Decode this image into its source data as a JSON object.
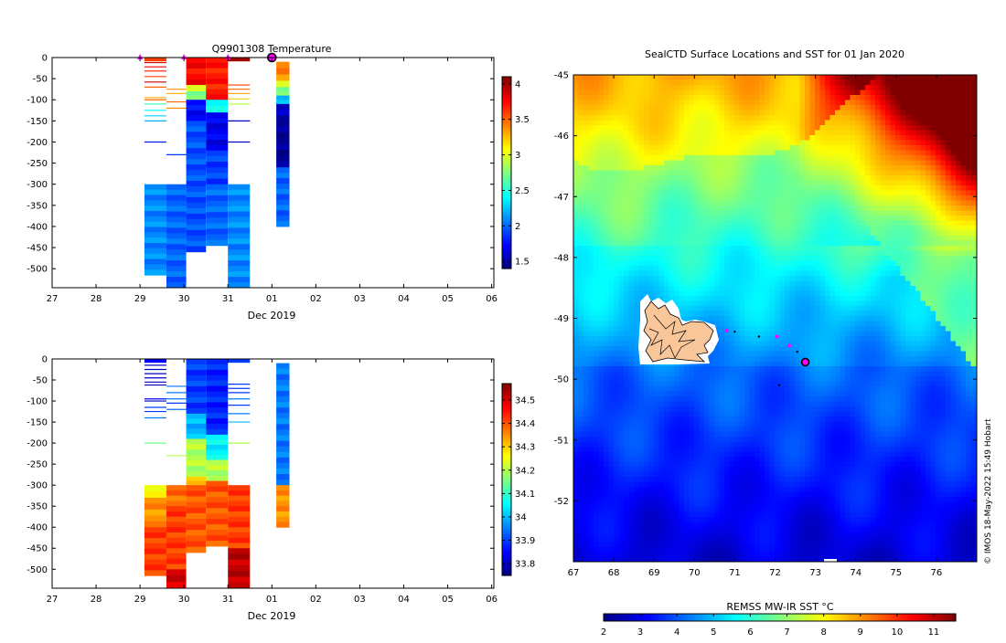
{
  "chart_data": [
    {
      "type": "heatmap",
      "title": "Q9901308  Temperature",
      "xlabel": "Dec 2019",
      "ylabel": "",
      "x_tick_labels": [
        "27",
        "28",
        "29",
        "30",
        "31",
        "01",
        "02",
        "03",
        "04",
        "05",
        "06"
      ],
      "x_tick_values": [
        27,
        28,
        29,
        30,
        31,
        32,
        33,
        34,
        35,
        36,
        37
      ],
      "xlim": [
        27,
        37.05
      ],
      "y_tick_labels": [
        "0",
        "-50",
        "-100",
        "-150",
        "-200",
        "-250",
        "-300",
        "-350",
        "-400",
        "-450",
        "-500"
      ],
      "y_tick_values": [
        0,
        -50,
        -100,
        -150,
        -200,
        -250,
        -300,
        -350,
        -400,
        -450,
        -500
      ],
      "ylim": [
        -545,
        0
      ],
      "colorbar": {
        "ticks": [
          1.5,
          2,
          2.5,
          3,
          3.5,
          4
        ],
        "range": [
          1.4,
          4.1
        ],
        "colormap": "jet"
      },
      "profile_markers_x": [
        29.0,
        30.0,
        31.0
      ],
      "current_marker_x": 32.0,
      "columns": [
        {
          "x0": 29.1,
          "x1": 29.6,
          "segments": [
            [
              0,
              -8,
              3.6
            ],
            [
              -300,
              -515,
              2.1
            ]
          ],
          "lines": [
            [
              -12,
              3.9
            ],
            [
              -22,
              3.8
            ],
            [
              -32,
              3.7
            ],
            [
              -45,
              3.6
            ],
            [
              -58,
              3.9
            ],
            [
              -70,
              3.5
            ],
            [
              -95,
              3.3
            ],
            [
              -100,
              3.5
            ],
            [
              -110,
              2.6
            ],
            [
              -125,
              2.4
            ],
            [
              -138,
              2.3
            ],
            [
              -150,
              2.2
            ],
            [
              -200,
              1.8
            ]
          ]
        },
        {
          "x0": 29.6,
          "x1": 30.05,
          "segments": [
            [
              -300,
              -545,
              2.0
            ]
          ],
          "lines": [
            [
              -75,
              3.4
            ],
            [
              -85,
              3.3
            ],
            [
              -105,
              3.5
            ],
            [
              -120,
              3.4
            ],
            [
              -230,
              1.9
            ]
          ]
        },
        {
          "x0": 30.05,
          "x1": 30.5,
          "segments": [
            [
              0,
              -65,
              3.75
            ],
            [
              -65,
              -80,
              3.0
            ],
            [
              -80,
              -100,
              2.7
            ],
            [
              -100,
              -150,
              1.75
            ],
            [
              -150,
              -460,
              1.95
            ]
          ],
          "lines": []
        },
        {
          "x0": 30.5,
          "x1": 31.0,
          "segments": [
            [
              0,
              -100,
              3.7
            ],
            [
              -100,
              -130,
              2.4
            ],
            [
              -130,
              -220,
              1.7
            ],
            [
              -220,
              -300,
              1.9
            ],
            [
              -300,
              -445,
              2.0
            ]
          ],
          "lines": []
        },
        {
          "x0": 31.0,
          "x1": 31.5,
          "segments": [
            [
              0,
              -8,
              4.0
            ],
            [
              -300,
              -545,
              2.1
            ]
          ],
          "lines": [
            [
              -65,
              3.6
            ],
            [
              -75,
              3.5
            ],
            [
              -85,
              3.3
            ],
            [
              -98,
              3.2
            ],
            [
              -110,
              2.9
            ],
            [
              -150,
              1.6
            ],
            [
              -200,
              1.6
            ]
          ]
        },
        {
          "x0": 32.1,
          "x1": 32.4,
          "segments": [
            [
              -10,
              -55,
              3.4
            ],
            [
              -55,
              -70,
              3.0
            ],
            [
              -70,
              -90,
              2.7
            ],
            [
              -90,
              -110,
              2.2
            ],
            [
              -110,
              -150,
              1.55
            ],
            [
              -150,
              -260,
              1.45
            ],
            [
              -260,
              -400,
              2.0
            ]
          ],
          "lines": []
        }
      ]
    },
    {
      "type": "heatmap",
      "title": "",
      "xlabel": "Dec 2019",
      "ylabel": "",
      "x_tick_labels": [
        "27",
        "28",
        "29",
        "30",
        "31",
        "01",
        "02",
        "03",
        "04",
        "05",
        "06"
      ],
      "x_tick_values": [
        27,
        28,
        29,
        30,
        31,
        32,
        33,
        34,
        35,
        36,
        37
      ],
      "xlim": [
        27,
        37.05
      ],
      "y_tick_labels": [
        "0",
        "-50",
        "-100",
        "-150",
        "-200",
        "-250",
        "-300",
        "-350",
        "-400",
        "-450",
        "-500"
      ],
      "y_tick_values": [
        0,
        -50,
        -100,
        -150,
        -200,
        -250,
        -300,
        -350,
        -400,
        -450,
        -500
      ],
      "ylim": [
        -545,
        0
      ],
      "colorbar": {
        "ticks": [
          33.8,
          33.9,
          34,
          34.1,
          34.2,
          34.3,
          34.4,
          34.5
        ],
        "range": [
          33.75,
          34.57
        ],
        "colormap": "jet"
      },
      "columns": [
        {
          "x0": 29.1,
          "x1": 29.6,
          "segments": [
            [
              0,
              -8,
              33.85
            ],
            [
              -300,
              -330,
              34.25
            ],
            [
              -330,
              -400,
              34.35
            ],
            [
              -400,
              -515,
              34.42
            ]
          ],
          "lines": [
            [
              -15,
              33.8
            ],
            [
              -25,
              33.8
            ],
            [
              -35,
              33.8
            ],
            [
              -45,
              33.8
            ],
            [
              -55,
              33.8
            ],
            [
              -62,
              33.8
            ],
            [
              -95,
              33.85
            ],
            [
              -100,
              33.8
            ],
            [
              -115,
              33.9
            ],
            [
              -125,
              33.9
            ],
            [
              -140,
              33.95
            ],
            [
              -200,
              34.15
            ]
          ]
        },
        {
          "x0": 29.6,
          "x1": 30.05,
          "segments": [
            [
              -300,
              -350,
              34.38
            ],
            [
              -350,
              -500,
              34.42
            ],
            [
              -500,
              -545,
              34.5
            ]
          ],
          "lines": [
            [
              -65,
              33.95
            ],
            [
              -80,
              33.95
            ],
            [
              -95,
              33.95
            ],
            [
              -105,
              33.9
            ],
            [
              -120,
              33.95
            ],
            [
              -230,
              34.2
            ]
          ]
        },
        {
          "x0": 30.05,
          "x1": 30.5,
          "segments": [
            [
              0,
              -130,
              33.9
            ],
            [
              -130,
              -190,
              34.0
            ],
            [
              -190,
              -280,
              34.2
            ],
            [
              -280,
              -300,
              34.3
            ],
            [
              -300,
              -460,
              34.4
            ]
          ],
          "lines": []
        },
        {
          "x0": 30.5,
          "x1": 31.0,
          "segments": [
            [
              0,
              -180,
              33.88
            ],
            [
              -180,
              -240,
              34.05
            ],
            [
              -240,
              -290,
              34.2
            ],
            [
              -290,
              -445,
              34.4
            ]
          ],
          "lines": []
        },
        {
          "x0": 31.0,
          "x1": 31.5,
          "segments": [
            [
              0,
              -8,
              33.9
            ],
            [
              -300,
              -450,
              34.42
            ],
            [
              -450,
              -545,
              34.52
            ]
          ],
          "lines": [
            [
              -60,
              33.9
            ],
            [
              -70,
              33.9
            ],
            [
              -80,
              33.9
            ],
            [
              -95,
              33.95
            ],
            [
              -110,
              33.9
            ],
            [
              -130,
              33.95
            ],
            [
              -150,
              34.0
            ],
            [
              -200,
              34.2
            ]
          ]
        },
        {
          "x0": 32.1,
          "x1": 32.4,
          "segments": [
            [
              -10,
              -300,
              33.95
            ],
            [
              -300,
              -400,
              34.35
            ]
          ],
          "lines": []
        }
      ]
    },
    {
      "type": "heatmap",
      "title": "SealCTD Surface Locations and SST for 01 Jan 2020",
      "xlabel": "",
      "ylabel": "",
      "x_tick_labels": [
        "67",
        "68",
        "69",
        "70",
        "71",
        "72",
        "73",
        "74",
        "75",
        "76"
      ],
      "x_tick_values": [
        67,
        68,
        69,
        70,
        71,
        72,
        73,
        74,
        75,
        76
      ],
      "xlim": [
        67,
        77
      ],
      "y_tick_labels": [
        "-45",
        "-46",
        "-47",
        "-48",
        "-49",
        "-50",
        "-51",
        "-52"
      ],
      "y_tick_values": [
        -45,
        -46,
        -47,
        -48,
        -49,
        -50,
        -51,
        -52
      ],
      "ylim": [
        -53,
        -45
      ],
      "colorbar": {
        "label": "REMSS MW-IR SST °C",
        "ticks": [
          2,
          3,
          4,
          5,
          6,
          7,
          8,
          9,
          10,
          11
        ],
        "range": [
          2,
          11.6
        ],
        "colormap": "jet"
      },
      "land": "Kerguelen Islands",
      "track_points": [
        {
          "lon": 70.8,
          "lat": -49.2,
          "kind": "profile"
        },
        {
          "lon": 71.0,
          "lat": -49.22,
          "kind": "surface"
        },
        {
          "lon": 71.6,
          "lat": -49.3,
          "kind": "surface"
        },
        {
          "lon": 72.05,
          "lat": -49.3,
          "kind": "profile"
        },
        {
          "lon": 72.35,
          "lat": -49.45,
          "kind": "profile"
        },
        {
          "lon": 72.55,
          "lat": -49.55,
          "kind": "surface"
        },
        {
          "lon": 72.1,
          "lat": -50.1,
          "kind": "surface"
        }
      ],
      "current_position": {
        "lon": 72.75,
        "lat": -49.72
      }
    }
  ],
  "credit": "© IMOS 18-May-2022 15:49 Hobart"
}
